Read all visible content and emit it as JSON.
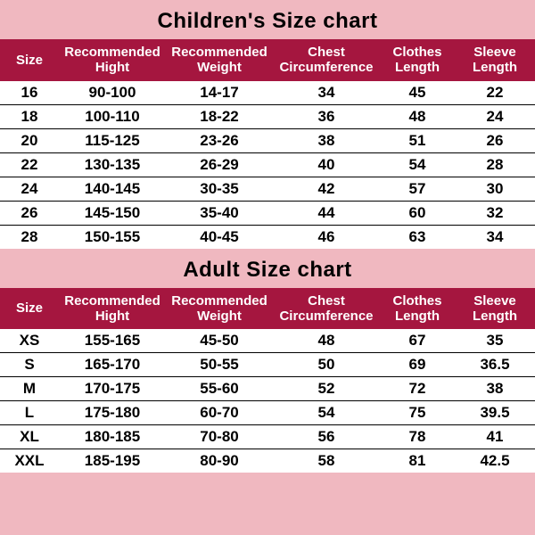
{
  "children": {
    "title": "Children's Size chart",
    "title_fontsize": 24,
    "header_bg": "#a5163f",
    "header_fontsize": 15,
    "row_fontsize": 17,
    "columns": [
      "Size",
      "Recommended Hight",
      "Recommended Weight",
      "Chest Circumference",
      "Clothes Length",
      "Sleeve Length"
    ],
    "rows": [
      [
        "16",
        "90-100",
        "14-17",
        "34",
        "45",
        "22"
      ],
      [
        "18",
        "100-110",
        "18-22",
        "36",
        "48",
        "24"
      ],
      [
        "20",
        "115-125",
        "23-26",
        "38",
        "51",
        "26"
      ],
      [
        "22",
        "130-135",
        "26-29",
        "40",
        "54",
        "28"
      ],
      [
        "24",
        "140-145",
        "30-35",
        "42",
        "57",
        "30"
      ],
      [
        "26",
        "145-150",
        "35-40",
        "44",
        "60",
        "32"
      ],
      [
        "28",
        "150-155",
        "40-45",
        "46",
        "63",
        "34"
      ]
    ]
  },
  "adult": {
    "title": "Adult Size chart",
    "title_fontsize": 24,
    "header_bg": "#a5163f",
    "header_fontsize": 15,
    "row_fontsize": 17,
    "columns": [
      "Size",
      "Recommended Hight",
      "Recommended Weight",
      "Chest Circumference",
      "Clothes Length",
      "Sleeve Length"
    ],
    "rows": [
      [
        "XS",
        "155-165",
        "45-50",
        "48",
        "67",
        "35"
      ],
      [
        "S",
        "165-170",
        "50-55",
        "50",
        "69",
        "36.5"
      ],
      [
        "M",
        "170-175",
        "55-60",
        "52",
        "72",
        "38"
      ],
      [
        "L",
        "175-180",
        "60-70",
        "54",
        "75",
        "39.5"
      ],
      [
        "XL",
        "180-185",
        "70-80",
        "56",
        "78",
        "41"
      ],
      [
        "XXL",
        "185-195",
        "80-90",
        "58",
        "81",
        "42.5"
      ]
    ]
  },
  "background_color": "#f0b8c0"
}
